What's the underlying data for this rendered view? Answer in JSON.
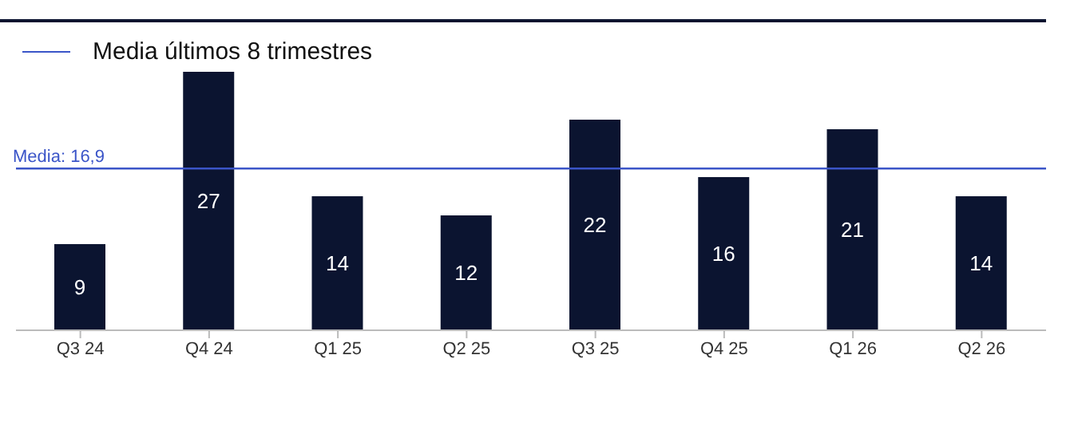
{
  "chart_data": {
    "type": "bar",
    "categories": [
      "Q3 24",
      "Q4 24",
      "Q1 25",
      "Q2 25",
      "Q3 25",
      "Q4 25",
      "Q1 26",
      "Q2 26"
    ],
    "series": [
      {
        "color": "#0b1430",
        "values": [
          9,
          27,
          14,
          12,
          22,
          16,
          21,
          14
        ]
      }
    ],
    "data_labels": true,
    "ref_lines": [
      {
        "axis": "y",
        "value": 16.9,
        "label": "Media: 16,9",
        "color": "#3b55c8",
        "line_style": "solid"
      }
    ],
    "annotations": [
      "Media últimos 8 trimestres"
    ],
    "tick_labels": "x",
    "grid": false
  }
}
